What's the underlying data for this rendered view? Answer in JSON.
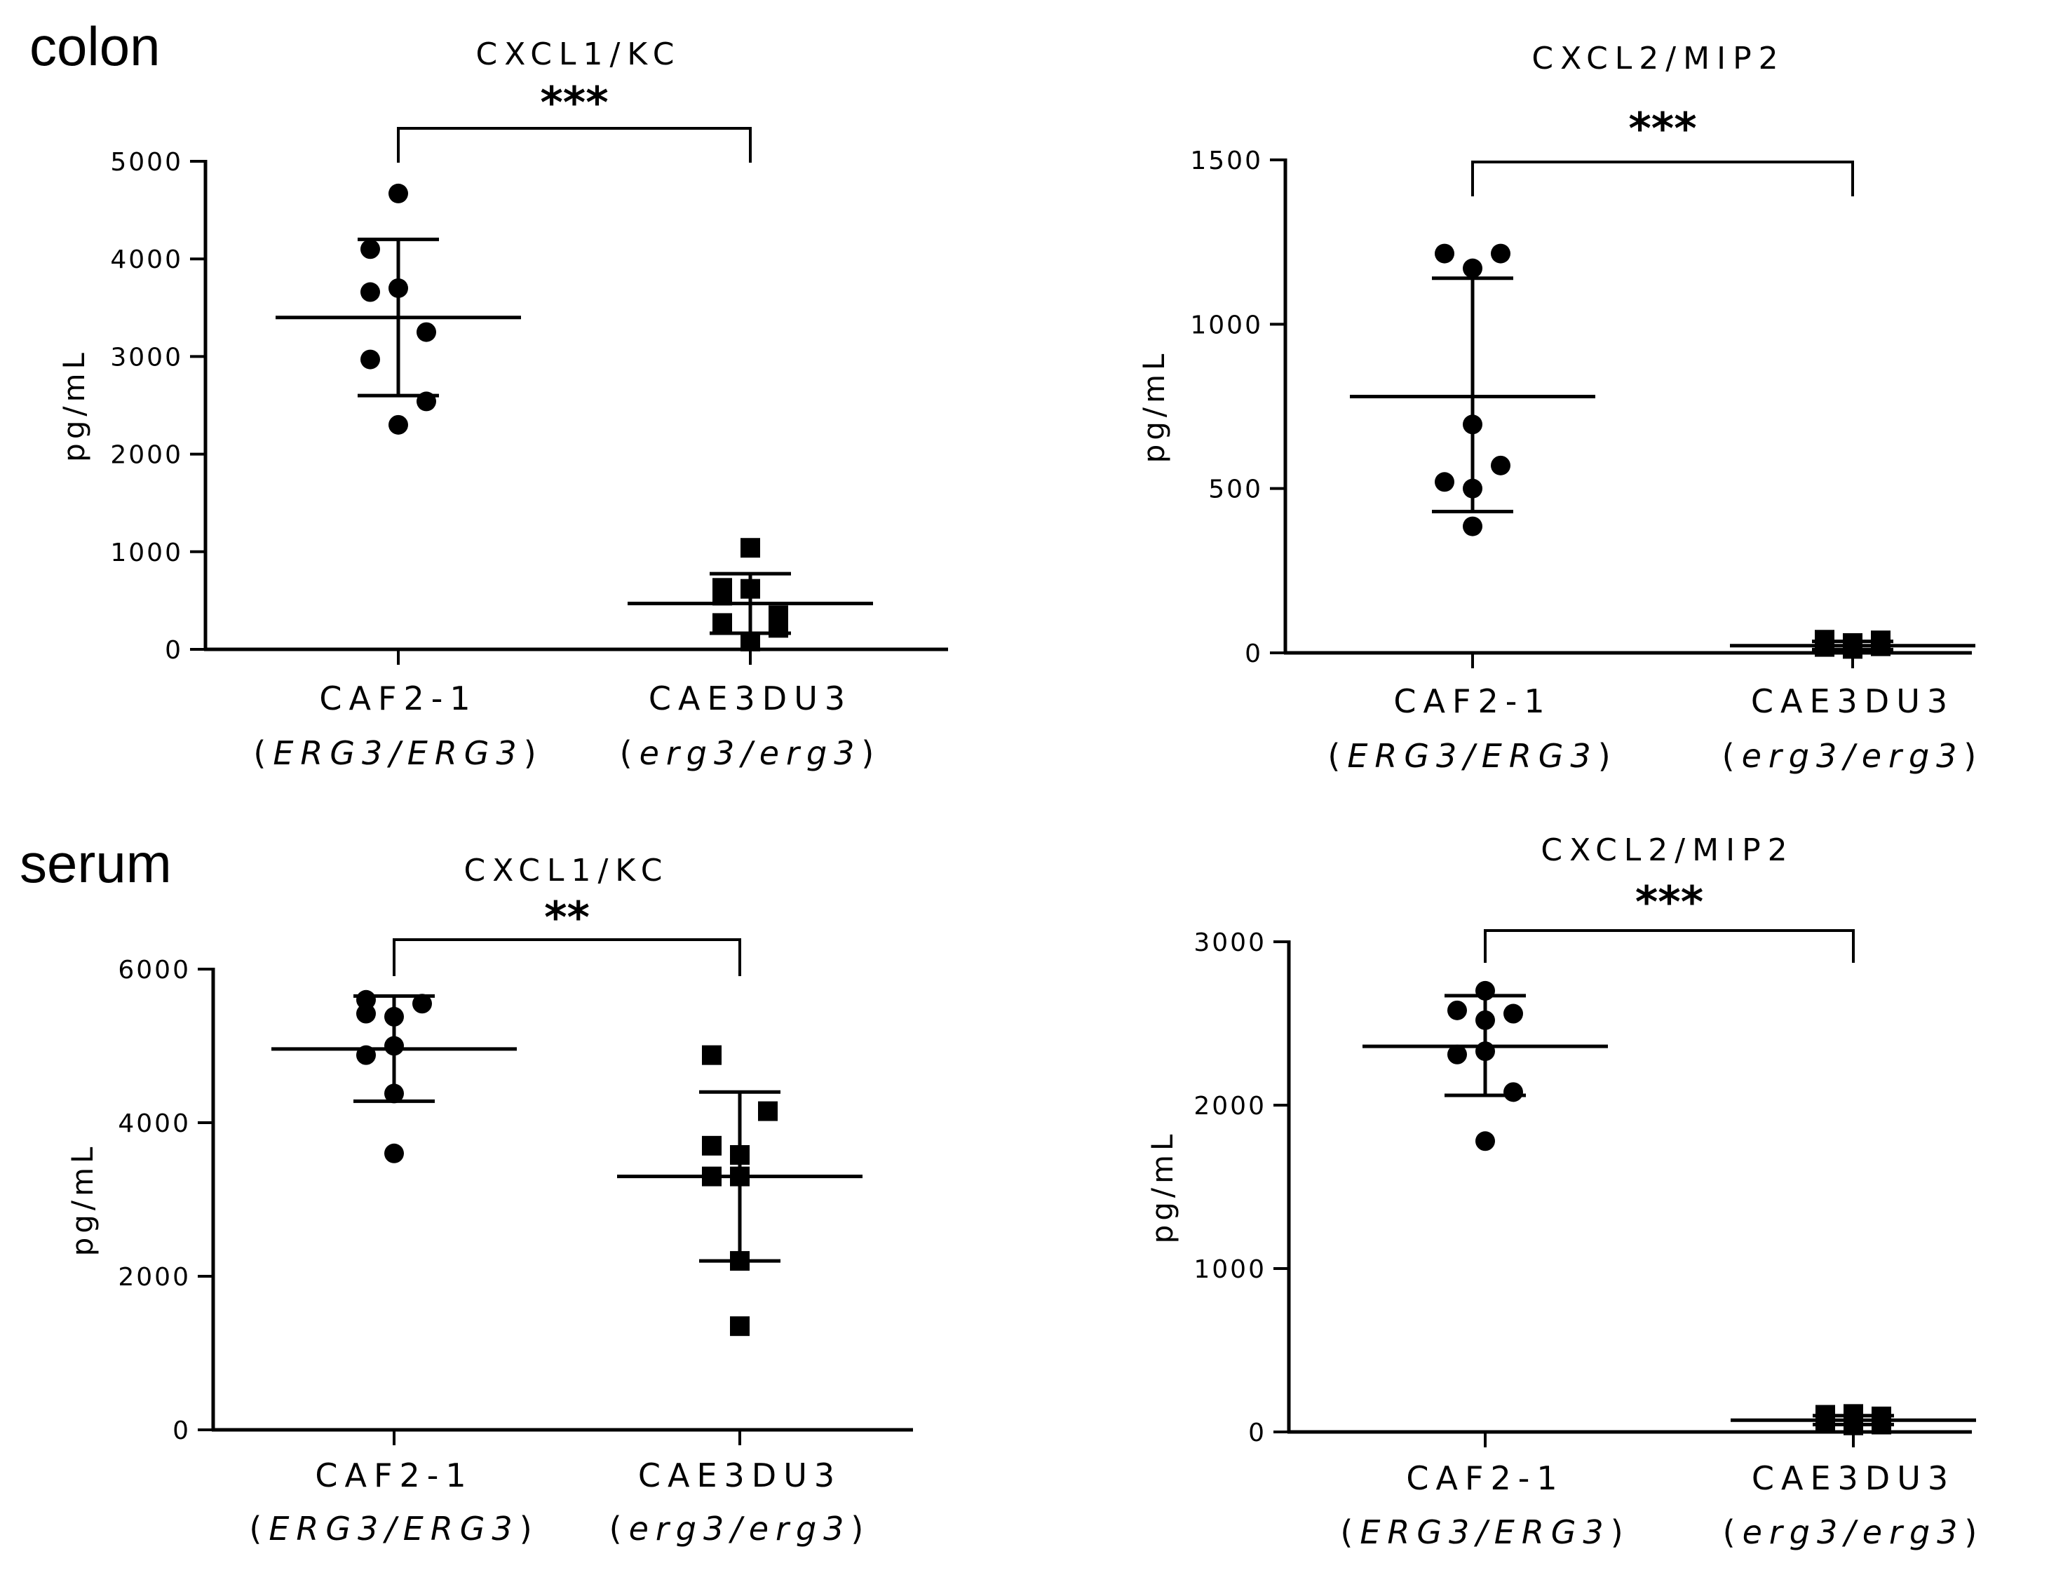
{
  "sections": {
    "colon": "colon",
    "serum": "serum"
  },
  "chart_data": [
    {
      "type": "scatter",
      "section": "colon",
      "title": "CXCL1/KC",
      "ylabel": "pg/mL",
      "ylim": [
        0,
        5000
      ],
      "yticks": [
        0,
        1000,
        2000,
        3000,
        4000,
        5000
      ],
      "yticklabels": [
        "0",
        "1000",
        "2000",
        "3000",
        "4000",
        "5000"
      ],
      "significance": "***",
      "groups": [
        {
          "name": "CAF2-1",
          "genotype_prefix": "(",
          "genotype": "ERG3/ERG3",
          "genotype_suffix": ")",
          "marker": "circle",
          "values": [
            4670,
            4100,
            3700,
            3660,
            3250,
            2970,
            2540,
            2300
          ],
          "mean": 3400,
          "sd_low": 2600,
          "sd_high": 4200
        },
        {
          "name": "CAE3DU3",
          "genotype_prefix": "(",
          "genotype": "erg3/erg3",
          "genotype_suffix": ")",
          "marker": "square",
          "values": [
            1040,
            630,
            620,
            550,
            350,
            270,
            220,
            80
          ],
          "mean": 470,
          "sd_low": 165,
          "sd_high": 775
        }
      ]
    },
    {
      "type": "scatter",
      "section": "colon",
      "title": "CXCL2/MIP2",
      "ylabel": "pg/mL",
      "ylim": [
        0,
        1500
      ],
      "yticks": [
        0,
        500,
        1000,
        1500
      ],
      "yticklabels": [
        "0",
        "500",
        "1000",
        "1500"
      ],
      "significance": "***",
      "groups": [
        {
          "name": "CAF2-1",
          "genotype_prefix": "(",
          "genotype": "ERG3/ERG3",
          "genotype_suffix": ")",
          "marker": "circle",
          "values": [
            1215,
            1215,
            1170,
            695,
            570,
            520,
            500,
            385
          ],
          "mean": 780,
          "sd_low": 430,
          "sd_high": 1140
        },
        {
          "name": "CAE3DU3",
          "genotype_prefix": "(",
          "genotype": "erg3/erg3",
          "genotype_suffix": ")",
          "marker": "square",
          "values": [
            40,
            38,
            30,
            25,
            20,
            18,
            15,
            12
          ],
          "mean": 22,
          "sd_low": 10,
          "sd_high": 35
        }
      ]
    },
    {
      "type": "scatter",
      "section": "serum",
      "title": "CXCL1/KC",
      "ylabel": "pg/mL",
      "ylim": [
        0,
        6000
      ],
      "yticks": [
        0,
        2000,
        4000,
        6000
      ],
      "yticklabels": [
        "0",
        "2000",
        "4000",
        "6000"
      ],
      "significance": "**",
      "groups": [
        {
          "name": "CAF2-1",
          "genotype_prefix": "(",
          "genotype": "ERG3/ERG3",
          "genotype_suffix": ")",
          "marker": "circle",
          "values": [
            5600,
            5550,
            5420,
            5380,
            5000,
            4880,
            4380,
            3600
          ],
          "mean": 4960,
          "sd_low": 4280,
          "sd_high": 5650
        },
        {
          "name": "CAE3DU3",
          "genotype_prefix": "(",
          "genotype": "erg3/erg3",
          "genotype_suffix": ")",
          "marker": "square",
          "values": [
            4880,
            4150,
            3700,
            3580,
            3300,
            3300,
            2200,
            1350
          ],
          "mean": 3300,
          "sd_low": 2200,
          "sd_high": 4400
        }
      ]
    },
    {
      "type": "scatter",
      "section": "serum",
      "title": "CXCL2/MIP2",
      "ylabel": "pg/mL",
      "ylim": [
        0,
        3000
      ],
      "yticks": [
        0,
        1000,
        2000,
        3000
      ],
      "yticklabels": [
        "0",
        "1000",
        "2000",
        "3000"
      ],
      "significance": "***",
      "groups": [
        {
          "name": "CAF2-1",
          "genotype_prefix": "(",
          "genotype": "ERG3/ERG3",
          "genotype_suffix": ")",
          "marker": "circle",
          "values": [
            2700,
            2580,
            2560,
            2520,
            2330,
            2310,
            2080,
            1780
          ],
          "mean": 2360,
          "sd_low": 2060,
          "sd_high": 2670
        },
        {
          "name": "CAE3DU3",
          "genotype_prefix": "(",
          "genotype": "erg3/erg3",
          "genotype_suffix": ")",
          "marker": "square",
          "values": [
            110,
            105,
            95,
            70,
            60,
            55,
            45,
            40
          ],
          "mean": 72,
          "sd_low": 45,
          "sd_high": 100
        }
      ]
    }
  ]
}
